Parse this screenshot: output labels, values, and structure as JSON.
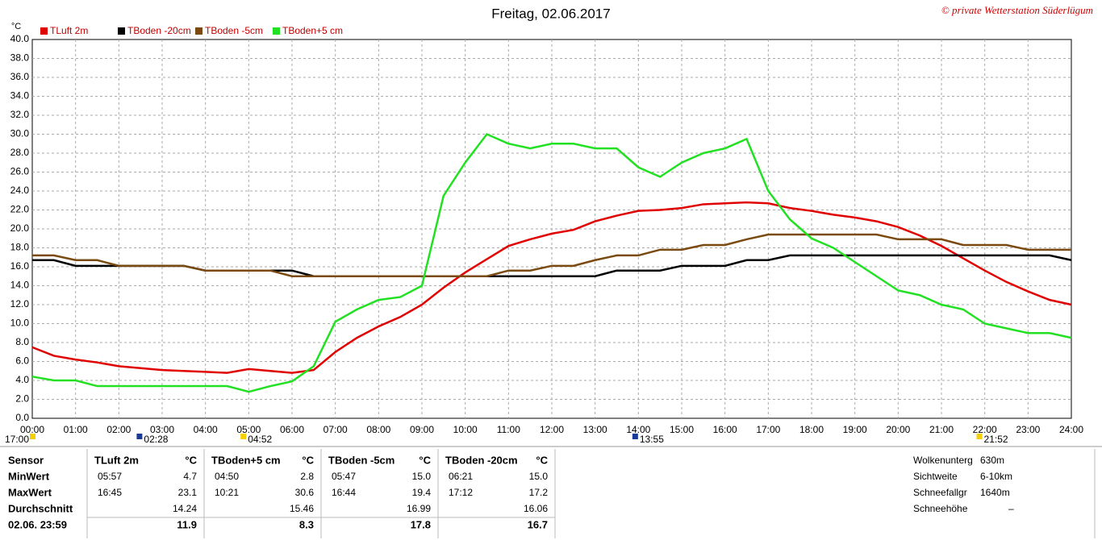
{
  "chart_data": {
    "type": "line",
    "title": "Freitag, 02.06.2017",
    "copyright": "© private Wetterstation Süderlügum",
    "y_unit": "°C",
    "grid": true,
    "xlim": [
      0,
      24
    ],
    "ylim": [
      0,
      40
    ],
    "xticks": [
      {
        "value": 0,
        "label": "00:00"
      },
      {
        "value": 1,
        "label": "01:00"
      },
      {
        "value": 2,
        "label": "02:00"
      },
      {
        "value": 3,
        "label": "03:00"
      },
      {
        "value": 4,
        "label": "04:00"
      },
      {
        "value": 5,
        "label": "05:00"
      },
      {
        "value": 6,
        "label": "06:00"
      },
      {
        "value": 7,
        "label": "07:00"
      },
      {
        "value": 8,
        "label": "08:00"
      },
      {
        "value": 9,
        "label": "09:00"
      },
      {
        "value": 10,
        "label": "10:00"
      },
      {
        "value": 11,
        "label": "11:00"
      },
      {
        "value": 12,
        "label": "12:00"
      },
      {
        "value": 13,
        "label": "13:00"
      },
      {
        "value": 14,
        "label": "14:00"
      },
      {
        "value": 15,
        "label": "15:00"
      },
      {
        "value": 16,
        "label": "16:00"
      },
      {
        "value": 17,
        "label": "17:00"
      },
      {
        "value": 18,
        "label": "18:00"
      },
      {
        "value": 19,
        "label": "19:00"
      },
      {
        "value": 20,
        "label": "20:00"
      },
      {
        "value": 21,
        "label": "21:00"
      },
      {
        "value": 22,
        "label": "22:00"
      },
      {
        "value": 23,
        "label": "23:00"
      },
      {
        "value": 24,
        "label": "24:00"
      }
    ],
    "yticks": [
      {
        "value": 0,
        "label": "0.0"
      },
      {
        "value": 2,
        "label": "2.0"
      },
      {
        "value": 4,
        "label": "4.0"
      },
      {
        "value": 6,
        "label": "6.0"
      },
      {
        "value": 8,
        "label": "8.0"
      },
      {
        "value": 10,
        "label": "10.0"
      },
      {
        "value": 12,
        "label": "12.0"
      },
      {
        "value": 14,
        "label": "14.0"
      },
      {
        "value": 16,
        "label": "16.0"
      },
      {
        "value": 18,
        "label": "18.0"
      },
      {
        "value": 20,
        "label": "20.0"
      },
      {
        "value": 22,
        "label": "22.0"
      },
      {
        "value": 24,
        "label": "24.0"
      },
      {
        "value": 26,
        "label": "26.0"
      },
      {
        "value": 28,
        "label": "28.0"
      },
      {
        "value": 30,
        "label": "30.0"
      },
      {
        "value": 32,
        "label": "32.0"
      },
      {
        "value": 34,
        "label": "34.0"
      },
      {
        "value": 36,
        "label": "36.0"
      },
      {
        "value": 38,
        "label": "38.0"
      },
      {
        "value": 40,
        "label": "40.0"
      }
    ],
    "x": [
      0,
      0.5,
      1,
      1.5,
      2,
      2.5,
      3,
      3.5,
      4,
      4.5,
      5,
      5.5,
      6,
      6.5,
      7,
      7.5,
      8,
      8.5,
      9,
      9.5,
      10,
      10.5,
      11,
      11.5,
      12,
      12.5,
      13,
      13.5,
      14,
      14.5,
      15,
      15.5,
      16,
      16.5,
      17,
      17.5,
      18,
      18.5,
      19,
      19.5,
      20,
      20.5,
      21,
      21.5,
      22,
      22.5,
      23,
      23.5,
      24
    ],
    "series": [
      {
        "name": "TLuft 2m",
        "color": "#e00000",
        "values": [
          7.5,
          6.6,
          6.2,
          5.9,
          5.5,
          5.3,
          5.1,
          5.0,
          4.9,
          4.8,
          5.2,
          5.0,
          4.8,
          5.1,
          7.0,
          8.5,
          9.7,
          10.7,
          12.0,
          13.8,
          15.4,
          16.8,
          18.2,
          18.9,
          19.5,
          19.9,
          20.8,
          21.4,
          21.9,
          22.0,
          22.2,
          22.6,
          22.7,
          22.8,
          22.7,
          22.2,
          21.9,
          21.5,
          21.2,
          20.8,
          20.2,
          19.3,
          18.2,
          16.9,
          15.6,
          14.4,
          13.4,
          12.5,
          12.0
        ]
      },
      {
        "name": "TBoden -20cm",
        "color": "#000000",
        "values": [
          16.7,
          16.7,
          16.1,
          16.1,
          16.1,
          16.1,
          16.1,
          16.1,
          15.6,
          15.6,
          15.6,
          15.6,
          15.6,
          15.0,
          15.0,
          15.0,
          15.0,
          15.0,
          15.0,
          15.0,
          15.0,
          15.0,
          15.0,
          15.0,
          15.0,
          15.0,
          15.0,
          15.6,
          15.6,
          15.6,
          16.1,
          16.1,
          16.1,
          16.7,
          16.7,
          17.2,
          17.2,
          17.2,
          17.2,
          17.2,
          17.2,
          17.2,
          17.2,
          17.2,
          17.2,
          17.2,
          17.2,
          17.2,
          16.7
        ]
      },
      {
        "name": "TBoden -5cm",
        "color": "#7a4a10",
        "values": [
          17.2,
          17.2,
          16.7,
          16.7,
          16.1,
          16.1,
          16.1,
          16.1,
          15.6,
          15.6,
          15.6,
          15.6,
          15.0,
          15.0,
          15.0,
          15.0,
          15.0,
          15.0,
          15.0,
          15.0,
          15.0,
          15.0,
          15.6,
          15.6,
          16.1,
          16.1,
          16.7,
          17.2,
          17.2,
          17.8,
          17.8,
          18.3,
          18.3,
          18.9,
          19.4,
          19.4,
          19.4,
          19.4,
          19.4,
          19.4,
          18.9,
          18.9,
          18.9,
          18.3,
          18.3,
          18.3,
          17.8,
          17.8,
          17.8
        ]
      },
      {
        "name": "TBoden+5 cm",
        "color": "#22e022",
        "values": [
          4.4,
          4.0,
          4.0,
          3.4,
          3.4,
          3.4,
          3.4,
          3.4,
          3.4,
          3.4,
          2.8,
          3.4,
          3.9,
          5.5,
          10.2,
          11.5,
          12.5,
          12.8,
          14.0,
          23.5,
          27.0,
          30.0,
          29.0,
          28.5,
          29.0,
          29.0,
          28.5,
          28.5,
          26.5,
          25.5,
          27.0,
          28.0,
          28.5,
          29.5,
          24.0,
          21.0,
          19.0,
          18.0,
          16.5,
          15.0,
          13.5,
          13.0,
          12.0,
          11.5,
          10.0,
          9.5,
          9.0,
          9.0,
          8.5
        ]
      }
    ],
    "markers": [
      {
        "x": 0,
        "label": "17:00"
      },
      {
        "x": 2.467,
        "label": "02:28"
      },
      {
        "x": 4.867,
        "label": "04:52"
      },
      {
        "x": 13.917,
        "label": "13:55"
      },
      {
        "x": 21.867,
        "label": "21:52"
      }
    ]
  },
  "table": {
    "header": "Sensor",
    "rows": [
      "MinWert",
      "MaxWert",
      "Durchschnitt",
      "02.06. 23:59"
    ],
    "columns": [
      {
        "name": "TLuft 2m",
        "unit": "°C",
        "min_time": "05:57",
        "min": "4.7",
        "max_time": "16:45",
        "max": "23.1",
        "avg": "14.24",
        "current": "11.9"
      },
      {
        "name": "TBoden+5 cm",
        "unit": "°C",
        "min_time": "04:50",
        "min": "2.8",
        "max_time": "10:21",
        "max": "30.6",
        "avg": "15.46",
        "current": "8.3"
      },
      {
        "name": "TBoden -5cm",
        "unit": "°C",
        "min_time": "05:47",
        "min": "15.0",
        "max_time": "16:44",
        "max": "19.4",
        "avg": "16.99",
        "current": "17.8"
      },
      {
        "name": "TBoden -20cm",
        "unit": "°C",
        "min_time": "06:21",
        "min": "15.0",
        "max_time": "17:12",
        "max": "17.2",
        "avg": "16.06",
        "current": "16.7"
      }
    ]
  },
  "info": [
    [
      "Wolkenunterg",
      "630m"
    ],
    [
      "Sichtweite",
      "6-10km"
    ],
    [
      "Schneefallgr",
      "1640m"
    ],
    [
      "Schneehöhe",
      "–"
    ]
  ]
}
